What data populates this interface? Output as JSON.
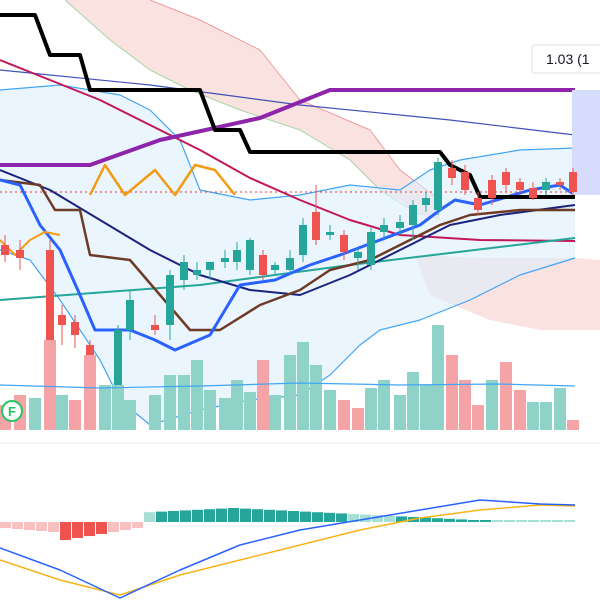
{
  "price_label": "1.03 (1",
  "marker": "F"
}
